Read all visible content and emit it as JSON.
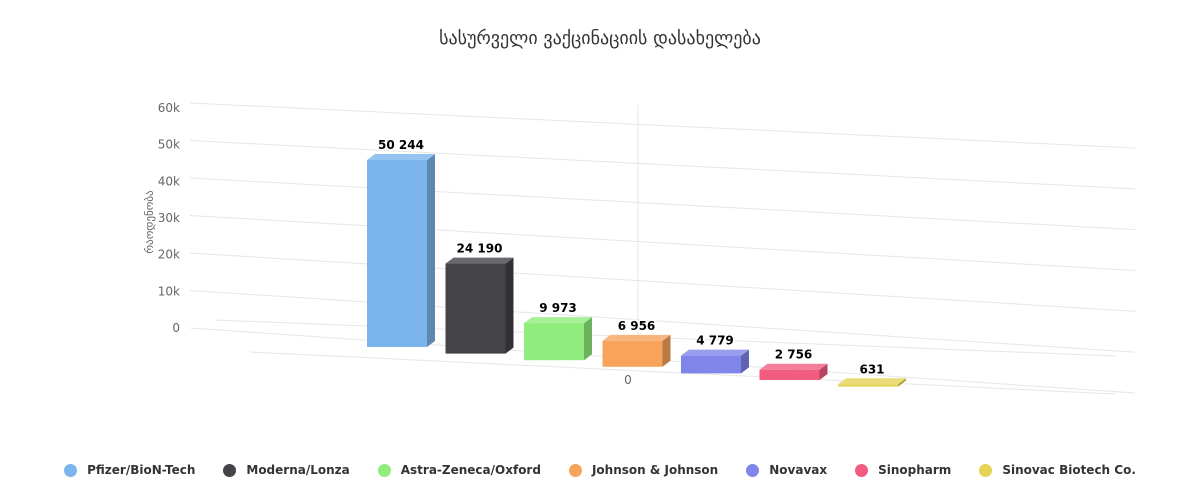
{
  "chart_data": {
    "type": "bar",
    "title": "სასურველი ვაქცინაციის დასახელება",
    "ylabel": "რაოდენობა",
    "xlabel": "",
    "x_tick_labels": [
      "0"
    ],
    "y_ticks": [
      0,
      10000,
      20000,
      30000,
      40000,
      50000,
      60000
    ],
    "y_tick_labels": [
      "0",
      "10k",
      "20k",
      "30k",
      "40k",
      "50k",
      "60k"
    ],
    "ylim": [
      0,
      60000
    ],
    "grid": true,
    "legend": "bottom",
    "three_d": true,
    "series": [
      {
        "name": "Pfizer/BioN-Tech",
        "value": 50244,
        "label": "50 244",
        "color": "#7cb5ec"
      },
      {
        "name": "Moderna/Lonza",
        "value": 24190,
        "label": "24 190",
        "color": "#434348"
      },
      {
        "name": "Astra-Zeneca/Oxford",
        "value": 9973,
        "label": "9 973",
        "color": "#90ed7d"
      },
      {
        "name": "Johnson & Johnson",
        "value": 6956,
        "label": "6 956",
        "color": "#f7a35c"
      },
      {
        "name": "Novavax",
        "value": 4779,
        "label": "4 779",
        "color": "#8085e9"
      },
      {
        "name": "Sinopharm",
        "value": 2756,
        "label": "2 756",
        "color": "#f15c80"
      },
      {
        "name": "Sinovac Biotech Co.",
        "value": 631,
        "label": "631",
        "color": "#e4d354"
      }
    ]
  }
}
